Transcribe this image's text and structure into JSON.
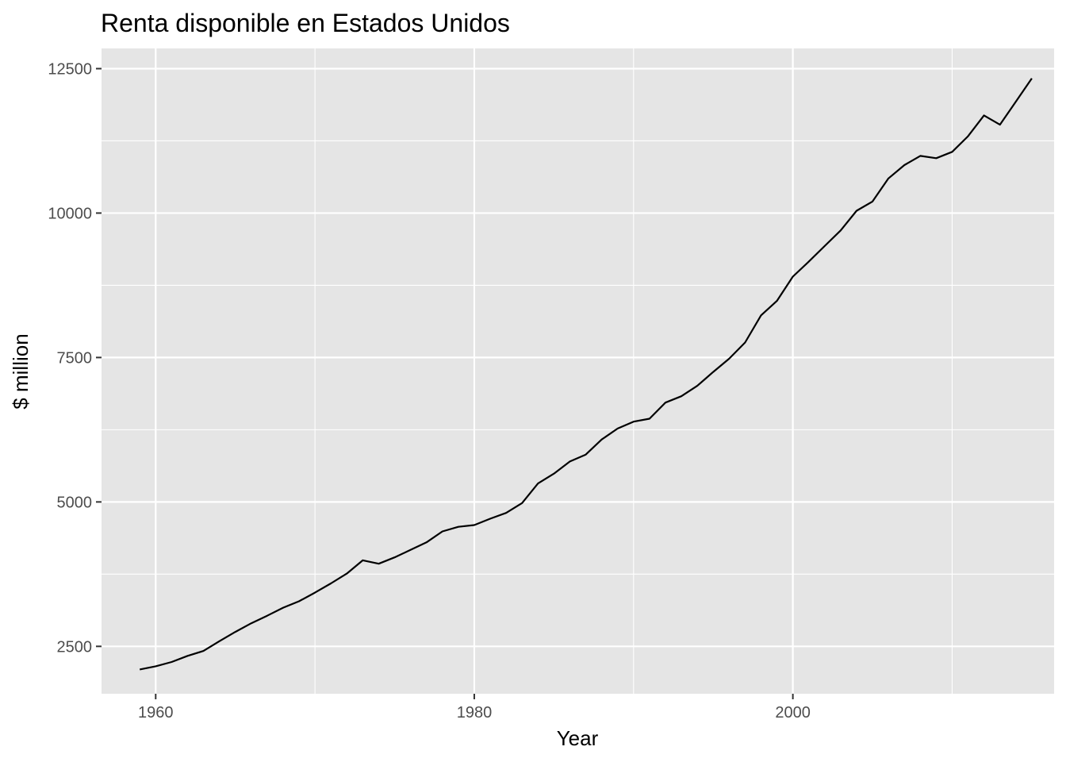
{
  "chart_data": {
    "type": "line",
    "title": "Renta disponible en Estados Unidos",
    "xlabel": "Year",
    "ylabel": "$ million",
    "xlim": [
      1956.6,
      2016.4
    ],
    "ylim": [
      1680,
      12850
    ],
    "x_ticks": [
      1960,
      1980,
      2000
    ],
    "x_minor_ticks": [
      1970,
      1990,
      2010
    ],
    "y_ticks": [
      2500,
      5000,
      7500,
      10000,
      12500
    ],
    "y_minor_ticks": [
      3750,
      6250,
      8750,
      11250
    ],
    "grid": true,
    "background": "#e5e5e5",
    "line_color": "#000000",
    "series": [
      {
        "x": [
          1959,
          1960,
          1961,
          1962,
          1963,
          1964,
          1965,
          1966,
          1967,
          1968,
          1969,
          1970,
          1971,
          1972,
          1973,
          1974,
          1975,
          1976,
          1977,
          1978,
          1979,
          1980,
          1981,
          1982,
          1983,
          1984,
          1985,
          1986,
          1987,
          1988,
          1989,
          1990,
          1991,
          1992,
          1993,
          1994,
          1995,
          1996,
          1997,
          1998,
          1999,
          2000,
          2001,
          2002,
          2003,
          2004,
          2005,
          2006,
          2007,
          2008,
          2009,
          2010,
          2011,
          2012,
          2013,
          2014,
          2015
        ],
        "values": [
          2100,
          2155,
          2230,
          2335,
          2420,
          2590,
          2750,
          2900,
          3030,
          3170,
          3280,
          3430,
          3590,
          3760,
          3990,
          3930,
          4040,
          4170,
          4300,
          4490,
          4570,
          4600,
          4710,
          4810,
          4980,
          5320,
          5490,
          5700,
          5820,
          6080,
          6270,
          6390,
          6440,
          6720,
          6830,
          7010,
          7250,
          7480,
          7760,
          8230,
          8480,
          8900,
          9160,
          9430,
          9700,
          10040,
          10200,
          10600,
          10830,
          10990,
          10950,
          11060,
          11330,
          11690,
          11530,
          11930,
          12330
        ]
      }
    ]
  }
}
